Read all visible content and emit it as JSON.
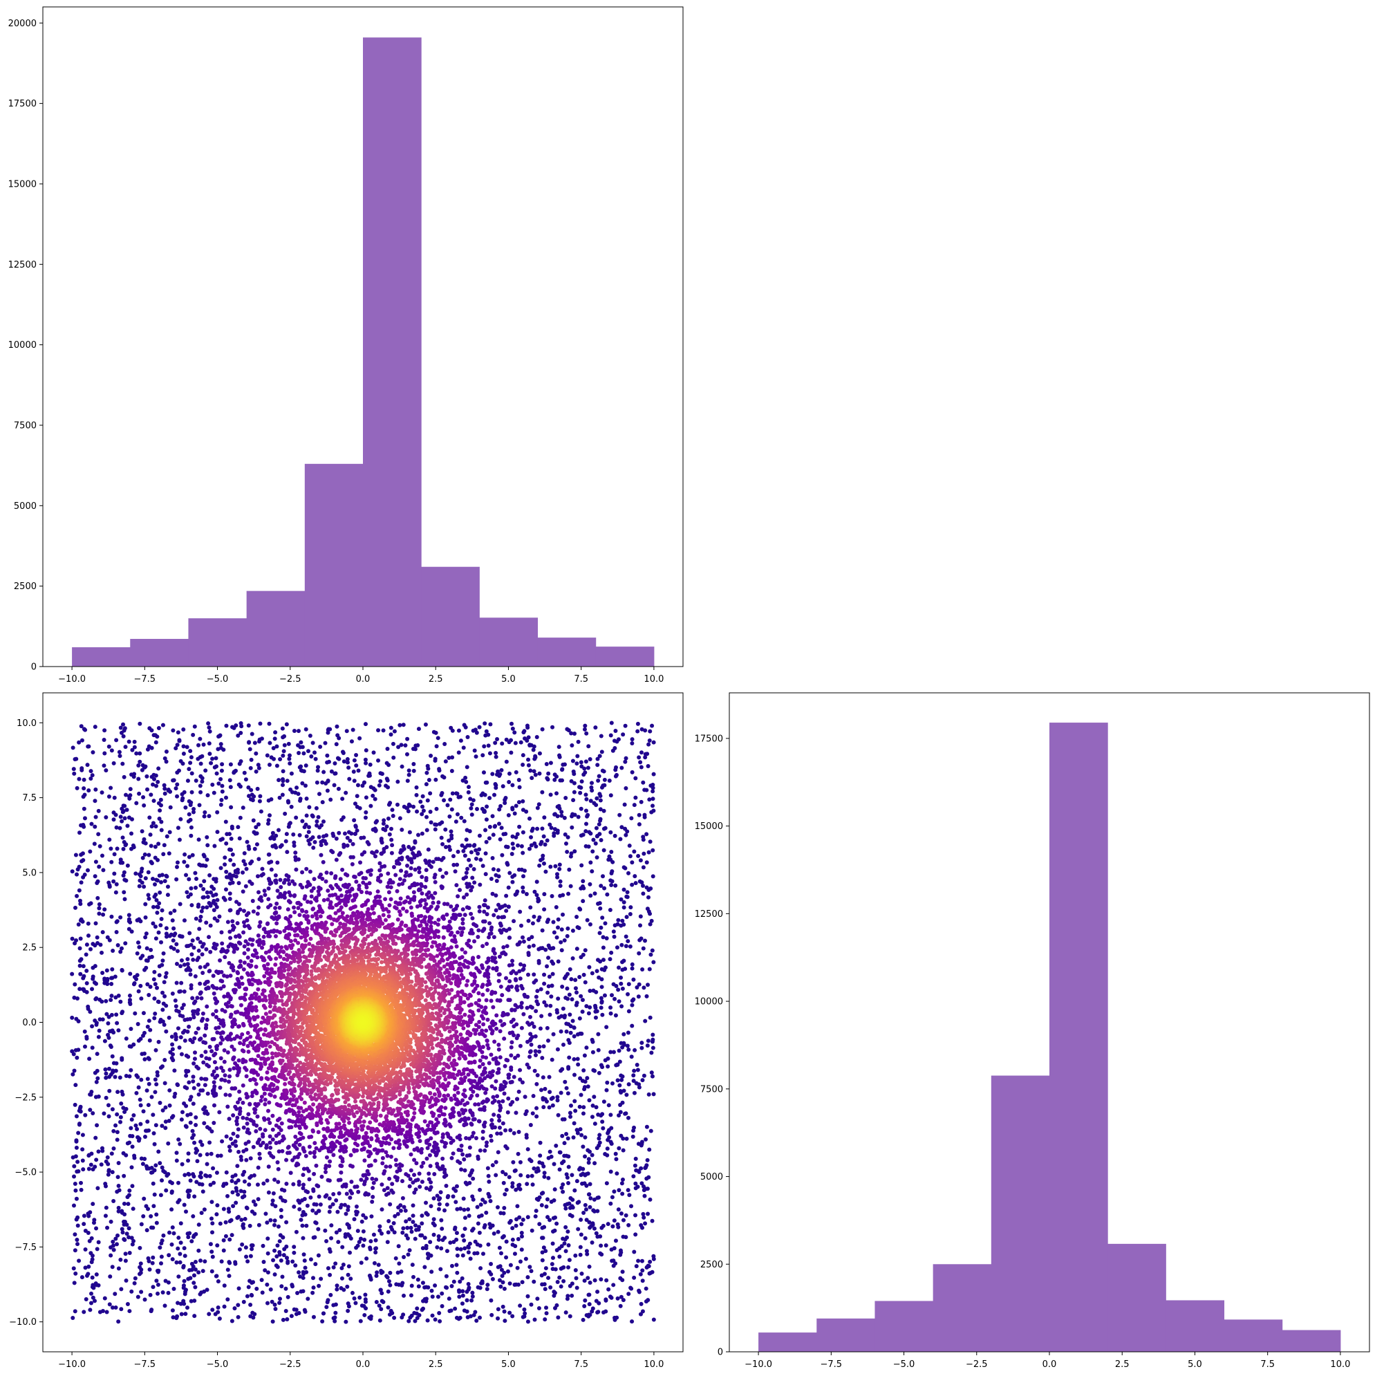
{
  "chart_data": [
    {
      "id": "top_hist",
      "type": "bar",
      "title": "",
      "xlabel": "",
      "ylabel": "",
      "bin_edges": [
        -10,
        -8,
        -6,
        -4,
        -2,
        0,
        2,
        4,
        6,
        8,
        10
      ],
      "values": [
        600,
        860,
        1500,
        2350,
        6300,
        19550,
        3100,
        1520,
        900,
        620
      ],
      "xlim": [
        -11,
        11
      ],
      "ylim": [
        0,
        20500
      ],
      "xticks": [
        -10,
        -7.5,
        -5,
        -2.5,
        0,
        2.5,
        5,
        7.5,
        10
      ],
      "xtick_labels": [
        "−10.0",
        "−7.5",
        "−5.0",
        "−2.5",
        "0.0",
        "2.5",
        "5.0",
        "7.5",
        "10.0"
      ],
      "yticks": [
        0,
        2500,
        5000,
        7500,
        10000,
        12500,
        15000,
        17500,
        20000
      ],
      "ytick_labels": [
        "0",
        "2500",
        "5000",
        "7500",
        "10000",
        "12500",
        "15000",
        "17500",
        "20000"
      ],
      "color": "#9467bd"
    },
    {
      "id": "scatter",
      "type": "scatter",
      "title": "",
      "xlabel": "",
      "ylabel": "",
      "xlim": [
        -11,
        11
      ],
      "ylim": [
        -11,
        11
      ],
      "x_range": [
        -10,
        10
      ],
      "y_range": [
        -10,
        10
      ],
      "colormap": "plasma",
      "color_by": "point density (highest at origin)",
      "grid": false,
      "xticks": [
        -10,
        -7.5,
        -5,
        -2.5,
        0,
        2.5,
        5,
        7.5,
        10
      ],
      "xtick_labels": [
        "−10.0",
        "−7.5",
        "−5.0",
        "−2.5",
        "0.0",
        "2.5",
        "5.0",
        "7.5",
        "10.0"
      ],
      "yticks": [
        -10,
        -7.5,
        -5,
        -2.5,
        0,
        2.5,
        5,
        7.5,
        10
      ],
      "ytick_labels": [
        "−10.0",
        "−7.5",
        "−5.0",
        "−2.5",
        "0.0",
        "2.5",
        "5.0",
        "7.5",
        "10.0"
      ]
    },
    {
      "id": "right_hist",
      "type": "bar",
      "title": "",
      "xlabel": "",
      "ylabel": "",
      "bin_edges": [
        -10,
        -8,
        -6,
        -4,
        -2,
        0,
        2,
        4,
        6,
        8,
        10
      ],
      "values": [
        550,
        950,
        1450,
        2500,
        7880,
        17950,
        3080,
        1470,
        920,
        620
      ],
      "xlim": [
        -11,
        11
      ],
      "ylim": [
        0,
        18800
      ],
      "xticks": [
        -10,
        -7.5,
        -5,
        -2.5,
        0,
        2.5,
        5,
        7.5,
        10
      ],
      "xtick_labels": [
        "−10.0",
        "−7.5",
        "−5.0",
        "−2.5",
        "0.0",
        "2.5",
        "5.0",
        "7.5",
        "10.0"
      ],
      "yticks": [
        0,
        2500,
        5000,
        7500,
        10000,
        12500,
        15000,
        17500
      ],
      "ytick_labels": [
        "0",
        "2500",
        "5000",
        "7500",
        "10000",
        "12500",
        "15000",
        "17500"
      ],
      "color": "#9467bd"
    }
  ]
}
